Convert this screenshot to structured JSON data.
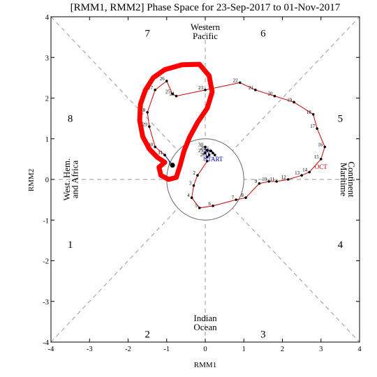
{
  "chart_data": {
    "type": "scatter",
    "title": "[RMM1, RMM2] Phase Space for 23-Sep-2017 to 01-Nov-2017",
    "xlabel": "RMM1",
    "ylabel": "RMM2",
    "xlim": [
      -4,
      4
    ],
    "ylim": [
      -4,
      4
    ],
    "xticks": [
      "-4",
      "-3",
      "-2",
      "-1",
      "0",
      "1",
      "2",
      "3",
      "4"
    ],
    "yticks": [
      "-4",
      "-3",
      "-2",
      "-1",
      "0",
      "1",
      "2",
      "3",
      "4"
    ],
    "phases": [
      "1",
      "2",
      "3",
      "4",
      "5",
      "6",
      "7",
      "8"
    ],
    "regions": {
      "top": [
        "Western",
        "Pacific"
      ],
      "bottom": [
        "Indian",
        "Ocean"
      ],
      "left": [
        "West. Hem.",
        "and Africa"
      ],
      "right": [
        "Maritime",
        "Continent"
      ]
    },
    "start_label": "START",
    "month_labels": [
      "OCT"
    ],
    "unit_circle_radius": 1,
    "series": [
      {
        "color": "#0000cc",
        "points": [
          {
            "label": "23",
            "x": 0.25,
            "y": 0.6
          },
          {
            "label": "24",
            "x": 0.2,
            "y": 0.65
          },
          {
            "label": "25",
            "x": 0.15,
            "y": 0.7
          },
          {
            "label": "26",
            "x": 0.05,
            "y": 0.72
          },
          {
            "label": "27",
            "x": 0.1,
            "y": 0.6
          },
          {
            "label": "28",
            "x": 0.05,
            "y": 0.55
          },
          {
            "label": "29",
            "x": 0.0,
            "y": 0.65
          },
          {
            "label": "30",
            "x": 0.0,
            "y": 0.8
          }
        ]
      },
      {
        "color": "#cc0000",
        "points": [
          {
            "label": "1",
            "x": 0.05,
            "y": 0.45
          },
          {
            "label": "2",
            "x": -0.2,
            "y": 0.1
          },
          {
            "label": "3",
            "x": -0.3,
            "y": -0.15
          },
          {
            "label": "4",
            "x": -0.35,
            "y": -0.45
          },
          {
            "label": "5",
            "x": -0.15,
            "y": -0.7
          },
          {
            "label": "6",
            "x": 0.2,
            "y": -0.65
          },
          {
            "label": "7",
            "x": 0.8,
            "y": -0.5
          },
          {
            "label": "8",
            "x": 1.05,
            "y": -0.45
          },
          {
            "label": "9",
            "x": 1.4,
            "y": -0.1
          },
          {
            "label": "10",
            "x": 1.65,
            "y": -0.05
          },
          {
            "label": "11",
            "x": 1.85,
            "y": -0.05
          },
          {
            "label": "12",
            "x": 2.15,
            "y": 0.0
          },
          {
            "label": "13",
            "x": 2.5,
            "y": 0.1
          },
          {
            "label": "14",
            "x": 2.7,
            "y": 0.18
          },
          {
            "label": "15",
            "x": 3.0,
            "y": 0.5
          },
          {
            "label": "16",
            "x": 3.1,
            "y": 0.8
          },
          {
            "label": "17",
            "x": 2.9,
            "y": 1.25
          },
          {
            "label": "18",
            "x": 2.8,
            "y": 1.6
          },
          {
            "label": "19",
            "x": 2.3,
            "y": 1.9
          },
          {
            "label": "20",
            "x": 1.8,
            "y": 2.05
          },
          {
            "label": "21",
            "x": 1.3,
            "y": 2.2
          },
          {
            "label": "22",
            "x": 0.9,
            "y": 2.38
          },
          {
            "label": "23",
            "x": 0.0,
            "y": 2.2
          },
          {
            "label": "24",
            "x": -0.75,
            "y": 2.05
          },
          {
            "label": "25",
            "x": -0.85,
            "y": 2.1
          },
          {
            "label": "26",
            "x": -1.0,
            "y": 2.42
          },
          {
            "label": "27",
            "x": -1.3,
            "y": 2.2
          },
          {
            "label": "28",
            "x": -1.5,
            "y": 1.65
          },
          {
            "label": "29",
            "x": -1.45,
            "y": 1.3
          },
          {
            "label": "30",
            "x": -1.3,
            "y": 0.8
          },
          {
            "label": "31",
            "x": -1.05,
            "y": 0.6
          }
        ]
      },
      {
        "color": "#0000cc",
        "points": [
          {
            "label": "",
            "x": -1.05,
            "y": 0.6
          },
          {
            "label": "1",
            "x": -0.85,
            "y": 0.35
          }
        ]
      }
    ],
    "end_marker": {
      "x": -0.85,
      "y": 0.35
    },
    "annotation": {
      "color": "#ff0000",
      "shape": "hand-drawn closed loop"
    }
  }
}
